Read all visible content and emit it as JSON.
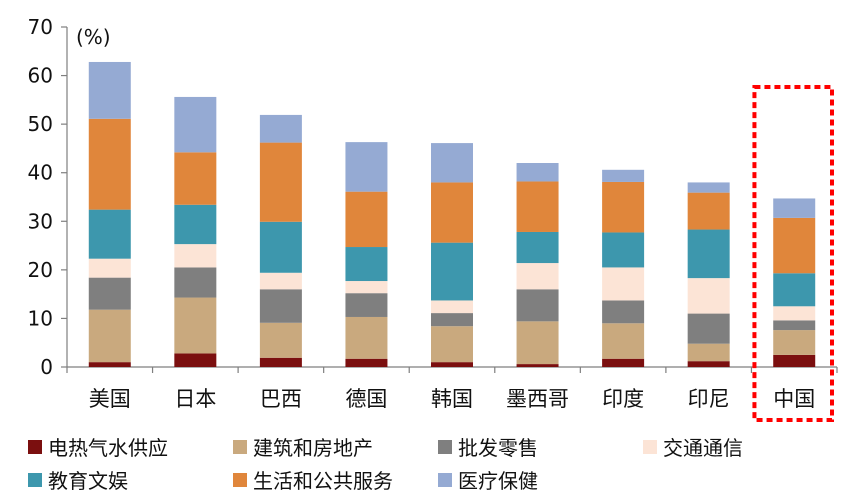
{
  "chart_data": {
    "type": "bar",
    "stacked": true,
    "unit_label": "(%)",
    "ylim": [
      0,
      70
    ],
    "yticks": [
      0,
      10,
      20,
      30,
      40,
      50,
      60,
      70
    ],
    "grid": false,
    "legend_position": "bottom",
    "categories": [
      "美国",
      "日本",
      "巴西",
      "德国",
      "韩国",
      "墨西哥",
      "印度",
      "印尼",
      "中国"
    ],
    "highlight_category": "中国",
    "highlight_color": "#ff0000",
    "series": [
      {
        "name": "电热气水供应",
        "color": "#7b0f0f",
        "values": [
          1.0,
          2.8,
          1.9,
          1.7,
          1.0,
          0.6,
          1.7,
          1.2,
          2.5
        ]
      },
      {
        "name": "建筑和房地产",
        "color": "#c9a97e",
        "values": [
          10.8,
          11.5,
          7.2,
          8.6,
          7.4,
          8.8,
          7.3,
          3.6,
          5.1
        ]
      },
      {
        "name": "批发零售",
        "color": "#7f7f7f",
        "values": [
          6.6,
          6.2,
          6.9,
          4.9,
          2.7,
          6.6,
          4.7,
          6.2,
          2.0
        ]
      },
      {
        "name": "交通通信",
        "color": "#fce4d6",
        "values": [
          3.9,
          4.8,
          3.4,
          2.5,
          2.6,
          5.4,
          6.8,
          7.3,
          2.9
        ]
      },
      {
        "name": "教育文娱",
        "color": "#3d97ad",
        "values": [
          10.1,
          8.1,
          10.5,
          7.0,
          11.9,
          6.4,
          7.2,
          10.0,
          6.8
        ]
      },
      {
        "name": "生活和公共服务",
        "color": "#e0863b",
        "values": [
          18.7,
          10.8,
          16.3,
          11.4,
          12.4,
          10.4,
          10.4,
          7.6,
          11.4
        ]
      },
      {
        "name": "医疗保健",
        "color": "#95aad3",
        "values": [
          11.7,
          11.4,
          5.7,
          10.2,
          8.1,
          3.8,
          2.5,
          2.1,
          4.0
        ]
      }
    ]
  }
}
